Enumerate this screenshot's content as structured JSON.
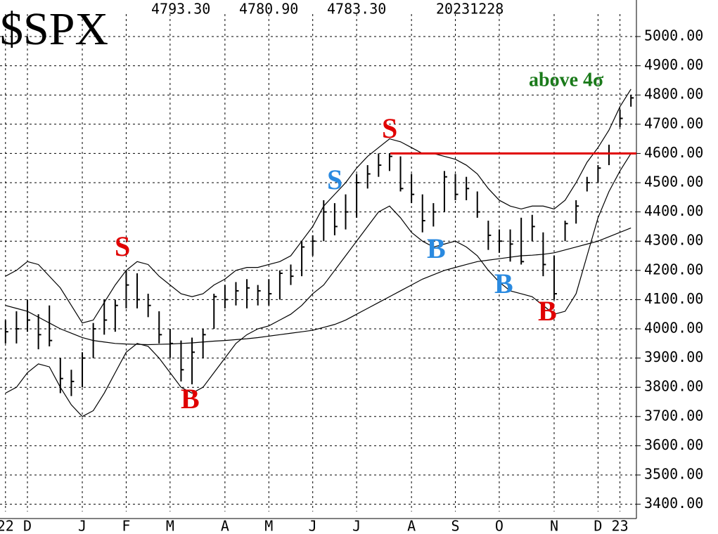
{
  "chart_data": {
    "type": "ohlc",
    "title": "$SPX",
    "header": [
      "4793.30",
      "4780.90",
      "4783.30",
      "20231228"
    ],
    "categories": [
      "22",
      null,
      "D",
      null,
      null,
      null,
      null,
      "J",
      null,
      null,
      null,
      "F",
      null,
      null,
      null,
      "M",
      null,
      null,
      null,
      null,
      "A",
      null,
      null,
      null,
      "M",
      null,
      null,
      null,
      "J",
      null,
      null,
      null,
      "J",
      null,
      null,
      null,
      null,
      "A",
      null,
      null,
      null,
      "S",
      null,
      null,
      null,
      "O",
      null,
      null,
      null,
      null,
      "N",
      null,
      null,
      null,
      "D",
      null,
      "23",
      null
    ],
    "high": [
      4030,
      4060,
      4100,
      4050,
      4080,
      3900,
      3860,
      3920,
      4020,
      4100,
      4100,
      4200,
      4190,
      4120,
      4060,
      4000,
      3960,
      3970,
      4000,
      4120,
      4150,
      4160,
      4170,
      4150,
      4170,
      4200,
      4220,
      4300,
      4320,
      4440,
      4430,
      4460,
      4530,
      4560,
      4600,
      4600,
      4590,
      4530,
      4460,
      4430,
      4540,
      4530,
      4520,
      4470,
      4370,
      4340,
      4340,
      4380,
      4390,
      4330,
      4250,
      4370,
      4440,
      4520,
      4560,
      4630,
      4750,
      4800
    ],
    "low": [
      3950,
      3950,
      3990,
      3930,
      3940,
      3780,
      3770,
      3800,
      3900,
      3980,
      3990,
      4070,
      4070,
      4040,
      3950,
      3900,
      3820,
      3810,
      3900,
      4000,
      4070,
      4080,
      4070,
      4080,
      4080,
      4100,
      4150,
      4180,
      4250,
      4300,
      4320,
      4340,
      4380,
      4480,
      4520,
      4540,
      4470,
      4430,
      4330,
      4350,
      4400,
      4440,
      4440,
      4380,
      4270,
      4260,
      4230,
      4220,
      4300,
      4180,
      4100,
      4300,
      4360,
      4470,
      4500,
      4560,
      4690,
      4760
    ],
    "close": [
      3990,
      4000,
      4030,
      3980,
      3960,
      3830,
      3820,
      3900,
      4000,
      4030,
      4080,
      4150,
      4100,
      4080,
      3980,
      3950,
      3860,
      3920,
      3980,
      4110,
      4100,
      4130,
      4140,
      4130,
      4120,
      4190,
      4180,
      4280,
      4300,
      4400,
      4350,
      4400,
      4500,
      4530,
      4560,
      4590,
      4480,
      4460,
      4370,
      4400,
      4520,
      4460,
      4480,
      4400,
      4320,
      4300,
      4290,
      4230,
      4350,
      4220,
      4120,
      4360,
      4420,
      4500,
      4550,
      4600,
      4720,
      4790
    ],
    "color": "#000000",
    "lines": [
      {
        "color": "#000000",
        "values": [
          4180,
          4200,
          4230,
          4220,
          4180,
          4140,
          4080,
          4020,
          4030,
          4090,
          4150,
          4200,
          4230,
          4220,
          4180,
          4150,
          4120,
          4110,
          4120,
          4150,
          4170,
          4200,
          4210,
          4210,
          4220,
          4230,
          4250,
          4300,
          4350,
          4420,
          4460,
          4500,
          4550,
          4590,
          4620,
          4650,
          4640,
          4620,
          4600,
          4600,
          4590,
          4580,
          4560,
          4530,
          4480,
          4440,
          4420,
          4410,
          4420,
          4420,
          4410,
          4440,
          4500,
          4570,
          4620,
          4680,
          4760,
          4820
        ]
      },
      {
        "color": "#000000",
        "values": [
          3780,
          3800,
          3850,
          3880,
          3870,
          3800,
          3740,
          3700,
          3720,
          3780,
          3850,
          3920,
          3950,
          3940,
          3900,
          3850,
          3800,
          3780,
          3800,
          3850,
          3900,
          3950,
          3980,
          4000,
          4010,
          4030,
          4050,
          4080,
          4120,
          4150,
          4200,
          4250,
          4300,
          4350,
          4400,
          4420,
          4380,
          4330,
          4300,
          4280,
          4290,
          4300,
          4280,
          4250,
          4200,
          4160,
          4130,
          4120,
          4110,
          4080,
          4050,
          4060,
          4120,
          4250,
          4380,
          4470,
          4540,
          4600
        ]
      },
      {
        "color": "#000000",
        "values": [
          4080,
          4070,
          4060,
          4040,
          4020,
          4000,
          3985,
          3970,
          3960,
          3955,
          3950,
          3948,
          3947,
          3946,
          3947,
          3948,
          3950,
          3952,
          3955,
          3958,
          3960,
          3963,
          3966,
          3970,
          3975,
          3980,
          3985,
          3990,
          3995,
          4005,
          4015,
          4030,
          4050,
          4070,
          4090,
          4110,
          4130,
          4150,
          4170,
          4185,
          4200,
          4210,
          4220,
          4230,
          4235,
          4240,
          4245,
          4250,
          4252,
          4255,
          4260,
          4270,
          4280,
          4290,
          4300,
          4315,
          4330,
          4345
        ]
      }
    ],
    "hline": {
      "value": 4600,
      "color": "#e00000"
    },
    "annotations": [
      {
        "text": "S",
        "color": "#e00000"
      },
      {
        "text": "B",
        "color": "#e00000"
      },
      {
        "text": "S",
        "color": "#2a8ae0"
      },
      {
        "text": "S",
        "color": "#e00000"
      },
      {
        "text": "B",
        "color": "#2a8ae0"
      },
      {
        "text": "B",
        "color": "#2a8ae0"
      },
      {
        "text": "B",
        "color": "#e00000"
      },
      {
        "text": "above 4σ",
        "color": "#1a7a1a"
      }
    ],
    "ylim": [
      3375,
      5125
    ],
    "yticks": [
      {
        "value": 3400,
        "label": "3400.00"
      },
      {
        "value": 3500,
        "label": "3500.00"
      },
      {
        "value": 3600,
        "label": "3600.00"
      },
      {
        "value": 3700,
        "label": "3700.00"
      },
      {
        "value": 3800,
        "label": "3800.00"
      },
      {
        "value": 3900,
        "label": "3900.00"
      },
      {
        "value": 4000,
        "label": "4000.00"
      },
      {
        "value": 4100,
        "label": "4100.00"
      },
      {
        "value": 4200,
        "label": "4200.00"
      },
      {
        "value": 4300,
        "label": "4300.00"
      },
      {
        "value": 4400,
        "label": "4400.00"
      },
      {
        "value": 4500,
        "label": "4500.00"
      },
      {
        "value": 4600,
        "label": "4600.00"
      },
      {
        "value": 4700,
        "label": "4700.00"
      },
      {
        "value": 4800,
        "label": "4800.00"
      },
      {
        "value": 4900,
        "label": "4900.00"
      },
      {
        "value": 5000,
        "label": "5000.00"
      }
    ],
    "grid": true
  }
}
